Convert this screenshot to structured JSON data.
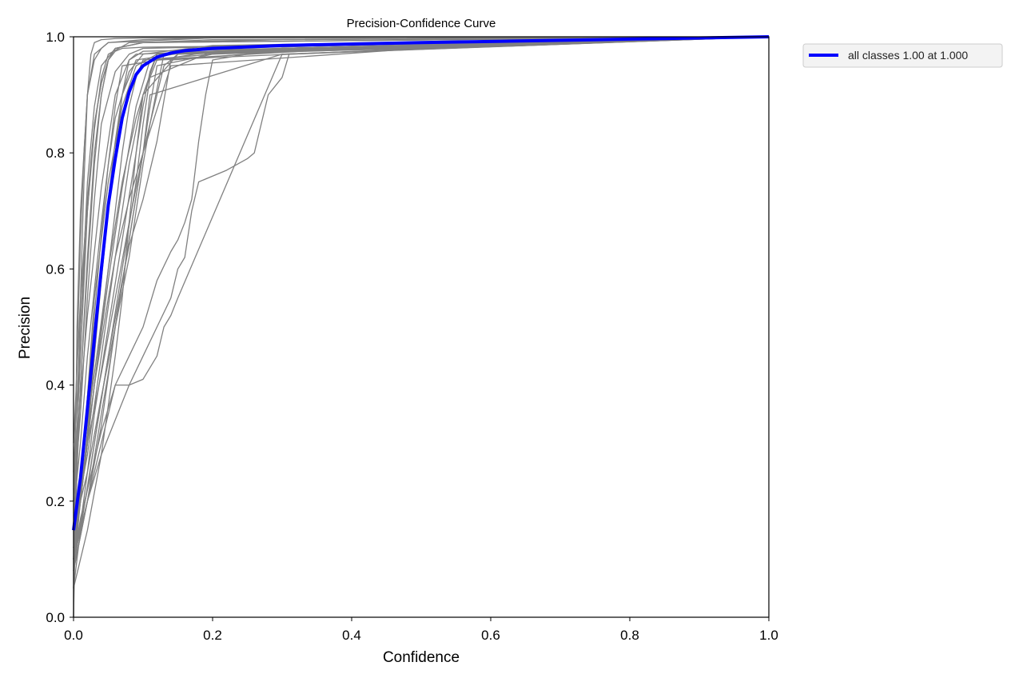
{
  "chart_data": {
    "type": "line",
    "title": "Precision-Confidence Curve",
    "xlabel": "Confidence",
    "ylabel": "Precision",
    "xlim": [
      0,
      1
    ],
    "ylim": [
      0,
      1
    ],
    "x_ticks": [
      "0.0",
      "0.2",
      "0.4",
      "0.6",
      "0.8",
      "1.0"
    ],
    "y_ticks": [
      "0.0",
      "0.2",
      "0.4",
      "0.6",
      "0.8",
      "1.0"
    ],
    "grid": false,
    "legend": {
      "placement": "outside-top-right",
      "entries": [
        "all classes 1.00 at 1.000"
      ]
    },
    "colors": {
      "class_curves": "#808080",
      "all_classes": "#0000ff"
    },
    "all_classes_series": {
      "name": "all classes 1.00 at 1.000",
      "x": [
        0.0,
        0.01,
        0.02,
        0.03,
        0.04,
        0.05,
        0.06,
        0.07,
        0.08,
        0.09,
        0.1,
        0.12,
        0.14,
        0.16,
        0.2,
        0.3,
        0.5,
        0.8,
        1.0
      ],
      "y": [
        0.15,
        0.24,
        0.36,
        0.48,
        0.6,
        0.71,
        0.79,
        0.86,
        0.905,
        0.935,
        0.95,
        0.965,
        0.972,
        0.976,
        0.98,
        0.985,
        0.99,
        0.996,
        1.0
      ]
    },
    "class_series": [
      {
        "x": [
          0.0,
          0.005,
          0.01,
          0.015,
          0.02,
          0.025,
          0.03,
          0.04,
          0.06,
          0.1,
          0.5,
          1.0
        ],
        "y": [
          0.0,
          0.3,
          0.55,
          0.75,
          0.9,
          0.97,
          0.99,
          0.995,
          0.997,
          0.998,
          0.999,
          1.0
        ]
      },
      {
        "x": [
          0.0,
          0.005,
          0.01,
          0.02,
          0.03,
          0.04,
          0.05,
          0.06,
          0.08,
          0.1,
          0.3,
          1.0
        ],
        "y": [
          0.05,
          0.25,
          0.4,
          0.6,
          0.78,
          0.9,
          0.96,
          0.98,
          0.985,
          0.99,
          0.995,
          1.0
        ]
      },
      {
        "x": [
          0.0,
          0.01,
          0.02,
          0.03,
          0.04,
          0.05,
          0.06,
          0.07,
          0.08,
          0.1,
          0.5,
          1.0
        ],
        "y": [
          0.1,
          0.2,
          0.32,
          0.45,
          0.58,
          0.7,
          0.8,
          0.9,
          0.96,
          0.975,
          0.985,
          1.0
        ]
      },
      {
        "x": [
          0.0,
          0.01,
          0.02,
          0.03,
          0.05,
          0.07,
          0.09,
          0.1,
          0.11,
          0.12,
          0.3,
          1.0
        ],
        "y": [
          0.08,
          0.16,
          0.25,
          0.35,
          0.5,
          0.65,
          0.8,
          0.88,
          0.94,
          0.97,
          0.98,
          1.0
        ]
      },
      {
        "x": [
          0.0,
          0.01,
          0.02,
          0.04,
          0.06,
          0.08,
          0.1,
          0.12,
          0.13,
          0.15,
          0.5,
          1.0
        ],
        "y": [
          0.12,
          0.2,
          0.3,
          0.42,
          0.55,
          0.68,
          0.8,
          0.9,
          0.95,
          0.97,
          0.98,
          1.0
        ]
      },
      {
        "x": [
          0.0,
          0.01,
          0.02,
          0.03,
          0.04,
          0.05,
          0.06,
          0.08,
          0.1,
          0.2,
          1.0
        ],
        "y": [
          0.15,
          0.4,
          0.62,
          0.8,
          0.9,
          0.96,
          0.98,
          0.985,
          0.99,
          0.995,
          1.0
        ]
      },
      {
        "x": [
          0.0,
          0.01,
          0.02,
          0.04,
          0.06,
          0.08,
          0.1,
          0.12,
          0.13,
          0.14,
          0.15,
          0.3,
          1.0
        ],
        "y": [
          0.1,
          0.17,
          0.22,
          0.32,
          0.4,
          0.4,
          0.41,
          0.45,
          0.5,
          0.52,
          0.55,
          0.97,
          1.0
        ]
      },
      {
        "x": [
          0.0,
          0.01,
          0.02,
          0.04,
          0.06,
          0.08,
          0.1,
          0.12,
          0.14,
          0.15,
          0.16,
          0.17,
          0.18,
          0.2,
          0.22,
          0.25,
          0.26,
          0.27,
          0.28,
          0.3,
          0.31,
          1.0
        ],
        "y": [
          0.08,
          0.14,
          0.2,
          0.28,
          0.34,
          0.4,
          0.45,
          0.5,
          0.55,
          0.6,
          0.62,
          0.7,
          0.75,
          0.76,
          0.77,
          0.79,
          0.8,
          0.85,
          0.9,
          0.93,
          0.97,
          1.0
        ]
      },
      {
        "x": [
          0.0,
          0.02,
          0.04,
          0.06,
          0.08,
          0.1,
          0.12,
          0.14,
          0.15,
          0.16,
          0.17,
          0.18,
          0.19,
          0.2,
          0.3,
          1.0
        ],
        "y": [
          0.1,
          0.2,
          0.3,
          0.4,
          0.45,
          0.5,
          0.58,
          0.63,
          0.65,
          0.68,
          0.72,
          0.82,
          0.9,
          0.96,
          0.98,
          1.0
        ]
      },
      {
        "x": [
          0.0,
          0.01,
          0.02,
          0.03,
          0.04,
          0.05,
          0.06,
          0.07,
          0.1,
          0.3,
          1.0
        ],
        "y": [
          0.2,
          0.45,
          0.7,
          0.85,
          0.92,
          0.96,
          0.975,
          0.98,
          0.982,
          0.985,
          1.0
        ]
      },
      {
        "x": [
          0.0,
          0.005,
          0.01,
          0.02,
          0.03,
          0.04,
          0.05,
          0.1,
          0.2,
          1.0
        ],
        "y": [
          0.0,
          0.5,
          0.7,
          0.9,
          0.96,
          0.98,
          0.99,
          0.995,
          0.998,
          1.0
        ]
      },
      {
        "x": [
          0.0,
          0.01,
          0.03,
          0.05,
          0.07,
          0.09,
          0.1,
          0.11,
          0.2,
          1.0
        ],
        "y": [
          0.05,
          0.15,
          0.3,
          0.45,
          0.6,
          0.75,
          0.85,
          0.93,
          0.975,
          1.0
        ]
      },
      {
        "x": [
          0.0,
          0.02,
          0.04,
          0.05,
          0.06,
          0.07,
          0.08,
          0.09,
          0.1,
          0.3,
          1.0
        ],
        "y": [
          0.12,
          0.3,
          0.5,
          0.6,
          0.7,
          0.8,
          0.88,
          0.93,
          0.96,
          0.98,
          1.0
        ]
      },
      {
        "x": [
          0.0,
          0.02,
          0.04,
          0.06,
          0.08,
          0.1,
          0.11,
          0.12,
          0.2,
          1.0
        ],
        "y": [
          0.1,
          0.2,
          0.33,
          0.5,
          0.65,
          0.8,
          0.88,
          0.95,
          0.97,
          1.0
        ]
      },
      {
        "x": [
          0.0,
          0.01,
          0.02,
          0.03,
          0.04,
          0.06,
          0.08,
          0.1,
          0.5,
          1.0
        ],
        "y": [
          0.2,
          0.35,
          0.55,
          0.72,
          0.85,
          0.94,
          0.97,
          0.98,
          0.99,
          1.0
        ]
      },
      {
        "x": [
          0.0,
          0.02,
          0.04,
          0.06,
          0.08,
          0.09,
          0.1,
          0.11,
          0.13,
          0.4,
          1.0
        ],
        "y": [
          0.15,
          0.25,
          0.38,
          0.5,
          0.62,
          0.7,
          0.78,
          0.85,
          0.97,
          0.98,
          1.0
        ]
      },
      {
        "x": [
          0.0,
          0.01,
          0.02,
          0.03,
          0.05,
          0.07,
          0.09,
          0.12,
          0.5,
          1.0
        ],
        "y": [
          0.08,
          0.2,
          0.38,
          0.55,
          0.75,
          0.88,
          0.95,
          0.97,
          0.985,
          1.0
        ]
      },
      {
        "x": [
          0.0,
          0.005,
          0.01,
          0.02,
          0.03,
          0.04,
          0.06,
          0.1,
          1.0
        ],
        "y": [
          0.1,
          0.3,
          0.5,
          0.75,
          0.88,
          0.95,
          0.98,
          0.99,
          1.0
        ]
      },
      {
        "x": [
          0.0,
          0.02,
          0.03,
          0.05,
          0.07,
          0.08,
          0.1,
          0.12,
          0.14,
          0.3,
          1.0
        ],
        "y": [
          0.1,
          0.22,
          0.3,
          0.45,
          0.58,
          0.64,
          0.72,
          0.82,
          0.96,
          0.975,
          1.0
        ]
      },
      {
        "x": [
          0.0,
          0.01,
          0.02,
          0.04,
          0.05,
          0.06,
          0.08,
          0.1,
          0.2,
          1.0
        ],
        "y": [
          0.18,
          0.3,
          0.45,
          0.68,
          0.78,
          0.86,
          0.94,
          0.97,
          0.985,
          1.0
        ]
      },
      {
        "x": [
          0.0,
          0.01,
          0.02,
          0.03,
          0.04,
          0.05,
          0.08,
          0.3,
          1.0
        ],
        "y": [
          0.25,
          0.5,
          0.7,
          0.84,
          0.93,
          0.97,
          0.99,
          0.995,
          1.0
        ]
      },
      {
        "x": [
          0.0,
          0.02,
          0.04,
          0.06,
          0.07,
          0.08,
          0.09,
          0.1,
          0.15,
          1.0
        ],
        "y": [
          0.05,
          0.15,
          0.28,
          0.45,
          0.55,
          0.68,
          0.8,
          0.9,
          0.97,
          1.0
        ]
      },
      {
        "x": [
          0.0,
          0.01,
          0.03,
          0.05,
          0.06,
          0.07,
          0.09,
          0.11,
          0.4,
          1.0
        ],
        "y": [
          0.12,
          0.22,
          0.4,
          0.58,
          0.66,
          0.74,
          0.88,
          0.96,
          0.98,
          1.0
        ]
      },
      {
        "x": [
          0.0,
          0.005,
          0.01,
          0.015,
          0.02,
          0.03,
          0.05,
          0.2,
          1.0
        ],
        "y": [
          0.2,
          0.45,
          0.65,
          0.8,
          0.9,
          0.97,
          0.99,
          0.998,
          1.0
        ]
      },
      {
        "x": [
          0.0,
          0.02,
          0.04,
          0.06,
          0.08,
          0.1,
          0.12,
          0.5,
          1.0
        ],
        "y": [
          0.15,
          0.28,
          0.45,
          0.62,
          0.78,
          0.9,
          0.97,
          0.985,
          1.0
        ]
      },
      {
        "x": [
          0.0,
          0.01,
          0.02,
          0.03,
          0.04,
          0.05,
          0.06,
          0.07,
          0.2,
          1.0
        ],
        "y": [
          0.1,
          0.22,
          0.38,
          0.52,
          0.66,
          0.78,
          0.88,
          0.95,
          0.975,
          1.0
        ]
      },
      {
        "x": [
          0.0,
          0.01,
          0.02,
          0.04,
          0.06,
          0.08,
          0.09,
          0.3,
          1.0
        ],
        "y": [
          0.22,
          0.38,
          0.52,
          0.74,
          0.9,
          0.96,
          0.97,
          0.98,
          1.0
        ]
      },
      {
        "x": [
          0.0,
          0.02,
          0.04,
          0.05,
          0.06,
          0.08,
          0.1,
          0.11,
          0.3,
          1.0
        ],
        "y": [
          0.08,
          0.2,
          0.35,
          0.42,
          0.5,
          0.65,
          0.8,
          0.9,
          0.97,
          1.0
        ]
      },
      {
        "x": [
          0.0,
          0.01,
          0.02,
          0.03,
          0.04,
          0.05,
          0.06,
          0.1,
          1.0
        ],
        "y": [
          0.3,
          0.55,
          0.72,
          0.85,
          0.92,
          0.96,
          0.98,
          0.99,
          1.0
        ]
      },
      {
        "x": [
          0.0,
          0.01,
          0.03,
          0.05,
          0.07,
          0.09,
          0.1,
          0.12,
          0.6,
          1.0
        ],
        "y": [
          0.15,
          0.25,
          0.42,
          0.6,
          0.75,
          0.86,
          0.9,
          0.96,
          0.985,
          1.0
        ]
      },
      {
        "x": [
          0.0,
          0.02,
          0.03,
          0.04,
          0.05,
          0.06,
          0.07,
          0.09,
          0.2,
          1.0
        ],
        "y": [
          0.1,
          0.3,
          0.45,
          0.6,
          0.72,
          0.82,
          0.9,
          0.96,
          0.98,
          1.0
        ]
      },
      {
        "x": [
          0.0,
          0.01,
          0.02,
          0.03,
          0.05,
          0.06,
          0.08,
          0.1,
          0.14,
          0.5,
          1.0
        ],
        "y": [
          0.12,
          0.2,
          0.3,
          0.4,
          0.55,
          0.62,
          0.72,
          0.8,
          0.95,
          0.98,
          1.0
        ]
      }
    ]
  }
}
